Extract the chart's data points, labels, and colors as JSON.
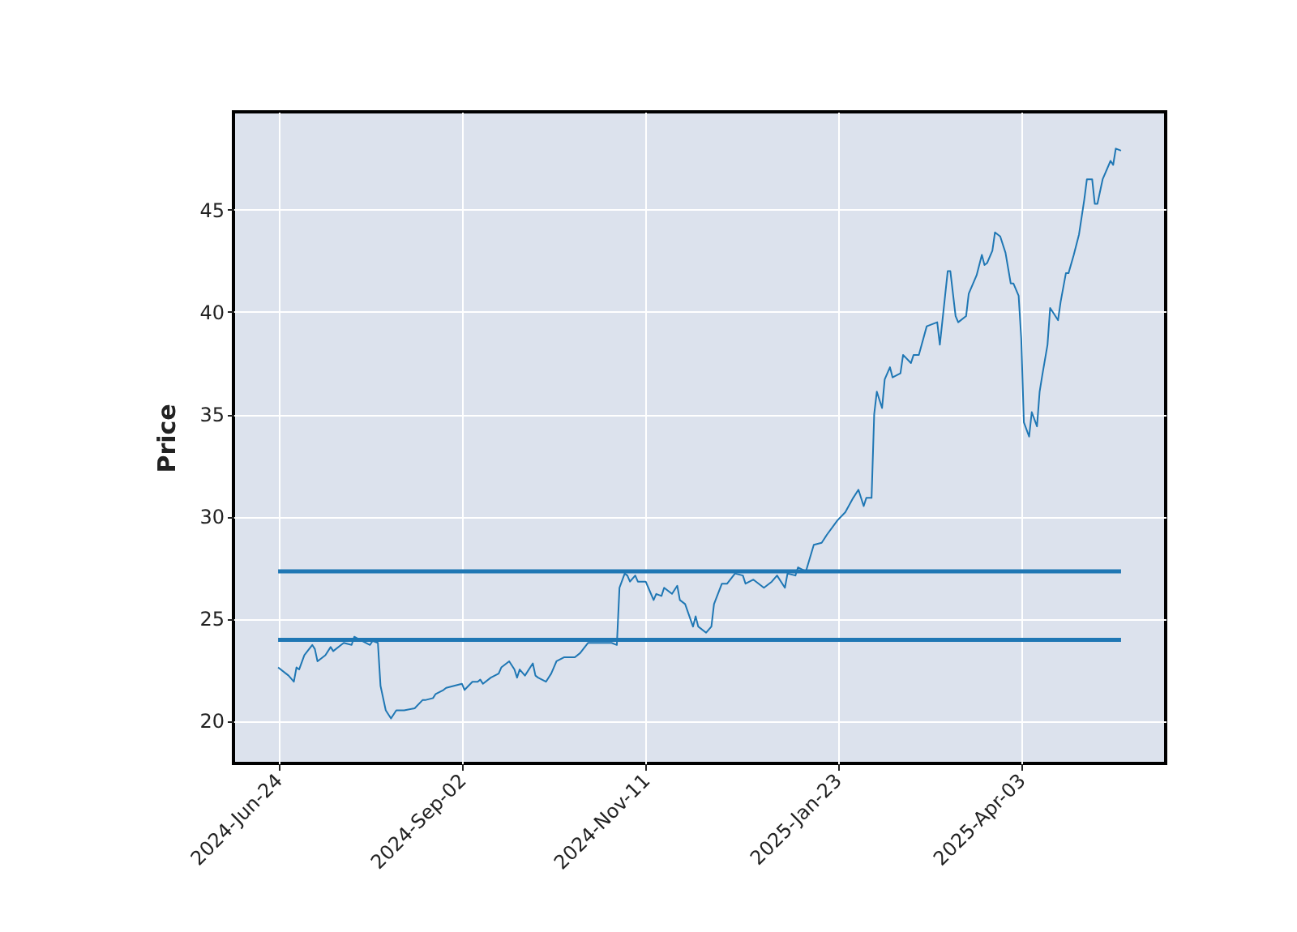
{
  "chart_data": {
    "type": "line",
    "ylabel": "Price",
    "x": [
      "2024-06-24",
      "2024-06-27",
      "2024-06-28",
      "2024-06-30",
      "2024-07-01",
      "2024-07-02",
      "2024-07-04",
      "2024-07-07",
      "2024-07-08",
      "2024-07-09",
      "2024-07-12",
      "2024-07-14",
      "2024-07-15",
      "2024-07-18",
      "2024-07-19",
      "2024-07-22",
      "2024-07-23",
      "2024-07-26",
      "2024-07-29",
      "2024-07-30",
      "2024-08-01",
      "2024-08-02",
      "2024-08-04",
      "2024-08-06",
      "2024-08-08",
      "2024-08-11",
      "2024-08-15",
      "2024-08-18",
      "2024-08-19",
      "2024-08-22",
      "2024-08-23",
      "2024-08-26",
      "2024-08-27",
      "2024-08-30",
      "2024-09-02",
      "2024-09-03",
      "2024-09-06",
      "2024-09-08",
      "2024-09-09",
      "2024-09-10",
      "2024-09-13",
      "2024-09-16",
      "2024-09-17",
      "2024-09-20",
      "2024-09-22",
      "2024-09-23",
      "2024-09-24",
      "2024-09-26",
      "2024-09-29",
      "2024-09-30",
      "2024-10-01",
      "2024-10-04",
      "2024-10-06",
      "2024-10-07",
      "2024-10-08",
      "2024-10-11",
      "2024-10-15",
      "2024-10-17",
      "2024-10-20",
      "2024-10-22",
      "2024-10-27",
      "2024-10-29",
      "2024-10-31",
      "2024-11-01",
      "2024-11-03",
      "2024-11-04",
      "2024-11-05",
      "2024-11-07",
      "2024-11-08",
      "2024-11-11",
      "2024-11-12",
      "2024-11-14",
      "2024-11-15",
      "2024-11-17",
      "2024-11-18",
      "2024-11-21",
      "2024-11-23",
      "2024-11-24",
      "2024-11-26",
      "2024-11-29",
      "2024-11-30",
      "2024-12-01",
      "2024-12-04",
      "2024-12-06",
      "2024-12-07",
      "2024-12-10",
      "2024-12-12",
      "2024-12-15",
      "2024-12-18",
      "2024-12-19",
      "2024-12-22",
      "2024-12-26",
      "2024-12-29",
      "2024-12-31",
      "2025-01-03",
      "2025-01-04",
      "2025-01-07",
      "2025-01-08",
      "2025-01-11",
      "2025-01-14",
      "2025-01-17",
      "2025-01-19",
      "2025-01-23",
      "2025-01-26",
      "2025-01-29",
      "2025-01-31",
      "2025-02-02",
      "2025-02-03",
      "2025-02-05",
      "2025-02-06",
      "2025-02-07",
      "2025-02-09",
      "2025-02-10",
      "2025-02-12",
      "2025-02-13",
      "2025-02-16",
      "2025-02-17",
      "2025-02-20",
      "2025-02-21",
      "2025-02-23",
      "2025-02-26",
      "2025-02-28",
      "2025-03-02",
      "2025-03-03",
      "2025-03-05",
      "2025-03-06",
      "2025-03-07",
      "2025-03-09",
      "2025-03-10",
      "2025-03-13",
      "2025-03-14",
      "2025-03-17",
      "2025-03-19",
      "2025-03-20",
      "2025-03-21",
      "2025-03-23",
      "2025-03-24",
      "2025-03-26",
      "2025-03-28",
      "2025-03-30",
      "2025-03-31",
      "2025-04-02",
      "2025-04-03",
      "2025-04-04",
      "2025-04-06",
      "2025-04-07",
      "2025-04-09",
      "2025-04-10",
      "2025-04-11",
      "2025-04-13",
      "2025-04-14",
      "2025-04-17",
      "2025-04-18",
      "2025-04-20",
      "2025-04-21",
      "2025-04-23",
      "2025-04-25",
      "2025-04-27",
      "2025-04-28",
      "2025-04-30",
      "2025-05-01",
      "2025-05-02",
      "2025-05-04",
      "2025-05-05",
      "2025-05-07",
      "2025-05-08",
      "2025-05-09",
      "2025-05-11"
    ],
    "series": [
      {
        "color": "#1f77b4",
        "values": [
          22.6,
          22.3,
          22.2,
          21.9,
          22.6,
          22.5,
          23.2,
          23.7,
          23.5,
          22.9,
          23.2,
          23.6,
          23.4,
          23.7,
          23.8,
          23.7,
          24.1,
          23.9,
          23.7,
          23.9,
          23.8,
          21.7,
          20.5,
          20.1,
          20.5,
          20.5,
          20.6,
          21.0,
          21.0,
          21.1,
          21.3,
          21.5,
          21.6,
          21.7,
          21.8,
          21.5,
          21.9,
          21.9,
          22.0,
          21.8,
          22.1,
          22.3,
          22.6,
          22.9,
          22.5,
          22.1,
          22.5,
          22.2,
          22.8,
          22.2,
          22.1,
          21.9,
          22.3,
          22.6,
          22.9,
          23.1,
          23.1,
          23.3,
          23.8,
          23.8,
          23.8,
          23.8,
          23.7,
          26.5,
          27.2,
          27.1,
          26.8,
          27.1,
          26.8,
          26.8,
          26.5,
          25.9,
          26.2,
          26.1,
          26.5,
          26.2,
          26.6,
          25.9,
          25.7,
          24.6,
          25.1,
          24.6,
          24.3,
          24.6,
          25.7,
          26.7,
          26.7,
          27.2,
          27.1,
          26.7,
          26.9,
          26.5,
          26.8,
          27.1,
          26.5,
          27.2,
          27.1,
          27.5,
          27.3,
          28.6,
          28.7,
          29.1,
          29.8,
          30.2,
          30.9,
          31.3,
          30.5,
          30.9,
          30.9,
          35.0,
          36.1,
          35.3,
          36.7,
          37.3,
          36.8,
          37.0,
          37.9,
          37.5,
          37.9,
          37.9,
          39.3,
          39.4,
          39.5,
          38.4,
          40.8,
          42.0,
          42.0,
          39.8,
          39.5,
          39.8,
          40.9,
          41.8,
          42.8,
          42.3,
          42.4,
          43.0,
          43.9,
          43.7,
          42.9,
          41.4,
          41.4,
          40.8,
          38.7,
          34.6,
          33.9,
          35.1,
          34.4,
          36.1,
          36.9,
          38.4,
          40.2,
          39.6,
          40.5,
          41.9,
          41.9,
          42.8,
          43.8,
          45.5,
          46.5,
          46.5,
          45.3,
          45.3,
          46.5,
          46.8,
          47.4,
          47.2,
          48.0,
          47.9
        ]
      }
    ],
    "xlim": [
      "2024-06-07",
      "2025-05-28"
    ],
    "xticks": [
      {
        "value": "2024-06-24",
        "label": "2024-Jun-24"
      },
      {
        "value": "2024-09-02",
        "label": "2024-Sep-02"
      },
      {
        "value": "2024-11-11",
        "label": "2024-Nov-11"
      },
      {
        "value": "2025-01-23",
        "label": "2025-Jan-23"
      },
      {
        "value": "2025-04-03",
        "label": "2025-Apr-03"
      }
    ],
    "ylim": [
      17.9,
      49.8
    ],
    "yticks": [
      20,
      25,
      30,
      35,
      40,
      45
    ],
    "ref_lines": [
      {
        "axis": "y",
        "value": 27.3,
        "color": "#1f77b4"
      },
      {
        "axis": "y",
        "value": 23.95,
        "color": "#1f77b4"
      }
    ],
    "grid": true
  }
}
